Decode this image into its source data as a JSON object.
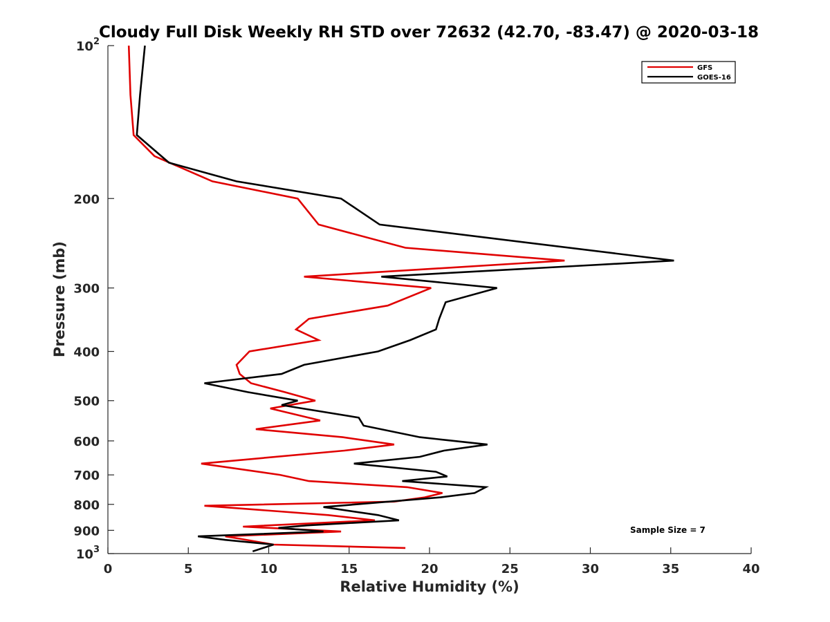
{
  "chart_data": {
    "type": "line",
    "title": "Cloudy Full Disk Weekly RH STD over 72632 (42.70, -83.47) @ 2020-03-18",
    "xlabel": "Relative Humidity (%)",
    "ylabel": "Pressure (mb)",
    "xlim": [
      0,
      40
    ],
    "ylim": [
      100,
      1000
    ],
    "y_scale": "log",
    "y_reversed": true,
    "x_ticks": [
      "0",
      "5",
      "10",
      "15",
      "20",
      "25",
      "30",
      "35",
      "40"
    ],
    "y_ticks": [
      {
        "value": 100,
        "label": "10",
        "sup": "2"
      },
      {
        "value": 200,
        "label": "200"
      },
      {
        "value": 300,
        "label": "300"
      },
      {
        "value": 400,
        "label": "400"
      },
      {
        "value": 500,
        "label": "500"
      },
      {
        "value": 600,
        "label": "600"
      },
      {
        "value": 700,
        "label": "700"
      },
      {
        "value": 800,
        "label": "800"
      },
      {
        "value": 900,
        "label": "900"
      },
      {
        "value": 1000,
        "label": "10",
        "sup": "3"
      }
    ],
    "grid": false,
    "legend_position": "top-right",
    "series": [
      {
        "name": "GFS",
        "color": "#e00000",
        "points": [
          [
            1.3,
            100
          ],
          [
            1.4,
            125
          ],
          [
            1.6,
            150
          ],
          [
            2.9,
            165
          ],
          [
            6.5,
            185
          ],
          [
            11.8,
            200
          ],
          [
            13.1,
            225
          ],
          [
            18.5,
            250
          ],
          [
            28.4,
            265
          ],
          [
            12.2,
            285
          ],
          [
            20.1,
            300
          ],
          [
            17.4,
            325
          ],
          [
            12.5,
            345
          ],
          [
            11.7,
            362
          ],
          [
            13.1,
            380
          ],
          [
            8.8,
            400
          ],
          [
            8.0,
            425
          ],
          [
            8.2,
            443
          ],
          [
            8.9,
            462
          ],
          [
            11.0,
            481
          ],
          [
            12.9,
            500
          ],
          [
            10.1,
            518
          ],
          [
            13.2,
            547
          ],
          [
            9.2,
            569
          ],
          [
            14.6,
            590
          ],
          [
            17.8,
            610
          ],
          [
            14.7,
            627
          ],
          [
            5.8,
            665
          ],
          [
            10.7,
            700
          ],
          [
            12.5,
            720
          ],
          [
            18.6,
            740
          ],
          [
            20.8,
            760
          ],
          [
            19.7,
            775
          ],
          [
            17.8,
            790
          ],
          [
            6.0,
            805
          ],
          [
            13.7,
            840
          ],
          [
            16.6,
            860
          ],
          [
            8.4,
            885
          ],
          [
            14.5,
            905
          ],
          [
            7.3,
            925
          ],
          [
            8.2,
            935
          ],
          [
            10.3,
            960
          ],
          [
            18.5,
            975
          ]
        ]
      },
      {
        "name": "GOES-16",
        "color": "#000000",
        "points": [
          [
            2.3,
            100
          ],
          [
            2.0,
            125
          ],
          [
            1.8,
            150
          ],
          [
            3.8,
            170
          ],
          [
            8.0,
            185
          ],
          [
            14.5,
            200
          ],
          [
            16.9,
            225
          ],
          [
            35.2,
            265
          ],
          [
            17.0,
            285
          ],
          [
            24.2,
            300
          ],
          [
            21.0,
            320
          ],
          [
            20.6,
            345
          ],
          [
            20.4,
            362
          ],
          [
            18.8,
            380
          ],
          [
            16.8,
            400
          ],
          [
            12.2,
            425
          ],
          [
            10.8,
            443
          ],
          [
            6.0,
            462
          ],
          [
            8.7,
            481
          ],
          [
            11.8,
            500
          ],
          [
            10.8,
            510
          ],
          [
            15.6,
            540
          ],
          [
            15.9,
            560
          ],
          [
            19.4,
            590
          ],
          [
            23.6,
            610
          ],
          [
            20.9,
            627
          ],
          [
            19.4,
            645
          ],
          [
            15.3,
            665
          ],
          [
            20.4,
            690
          ],
          [
            21.1,
            705
          ],
          [
            18.3,
            720
          ],
          [
            23.5,
            740
          ],
          [
            22.8,
            760
          ],
          [
            20.7,
            775
          ],
          [
            13.4,
            810
          ],
          [
            16.8,
            840
          ],
          [
            18.1,
            860
          ],
          [
            12.4,
            880
          ],
          [
            10.6,
            890
          ],
          [
            13.4,
            905
          ],
          [
            5.6,
            925
          ],
          [
            7.3,
            940
          ],
          [
            10.3,
            960
          ],
          [
            9.0,
            990
          ]
        ]
      }
    ],
    "annotations": [
      {
        "text": "Sample Size = 7",
        "position": "bottom-right"
      }
    ]
  }
}
